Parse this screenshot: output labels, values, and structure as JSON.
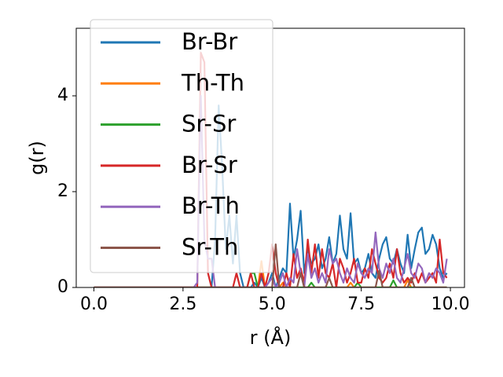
{
  "chart_data": {
    "type": "line",
    "xlabel": "r (Å)",
    "ylabel": "g(r)",
    "xlim": [
      -0.495,
      10.395
    ],
    "ylim": [
      0,
      5.41
    ],
    "xticks": [
      {
        "value": 0,
        "label": "0.0"
      },
      {
        "value": 2.5,
        "label": "2.5"
      },
      {
        "value": 5,
        "label": "5.0"
      },
      {
        "value": 7.5,
        "label": "7.5"
      },
      {
        "value": 10,
        "label": "10.0"
      }
    ],
    "yticks": [
      0,
      2,
      4
    ],
    "legend": "upper left",
    "x": [
      0,
      0.1,
      0.2,
      0.3,
      0.4,
      0.5,
      0.6,
      0.7,
      0.8,
      0.9,
      1,
      1.1,
      1.2,
      1.3,
      1.4,
      1.5,
      1.6,
      1.7,
      1.8,
      1.9,
      2,
      2.1,
      2.2,
      2.3,
      2.4,
      2.5,
      2.6,
      2.7,
      2.8,
      2.9,
      3,
      3.1,
      3.2,
      3.3,
      3.4,
      3.5,
      3.6,
      3.7,
      3.8,
      3.9,
      4,
      4.1,
      4.2,
      4.3,
      4.4,
      4.5,
      4.6,
      4.7,
      4.8,
      4.9,
      5,
      5.1,
      5.2,
      5.3,
      5.4,
      5.5,
      5.6,
      5.7,
      5.8,
      5.9,
      6,
      6.1,
      6.2,
      6.3,
      6.4,
      6.5,
      6.6,
      6.7,
      6.8,
      6.9,
      7,
      7.1,
      7.2,
      7.3,
      7.4,
      7.5,
      7.6,
      7.7,
      7.8,
      7.9,
      8,
      8.1,
      8.2,
      8.3,
      8.4,
      8.5,
      8.6,
      8.7,
      8.8,
      8.9,
      9,
      9.1,
      9.2,
      9.3,
      9.4,
      9.5,
      9.6,
      9.7,
      9.8,
      9.9
    ],
    "series": [
      {
        "name": "Br-Br",
        "color": "#1f77b4",
        "values": [
          0,
          0,
          0,
          0,
          0,
          0,
          0,
          0,
          0,
          0,
          0,
          0,
          0,
          0,
          0,
          0,
          0,
          0,
          0,
          0,
          0,
          0,
          0,
          0,
          0,
          0,
          0,
          0,
          0,
          0,
          0,
          0,
          0,
          0,
          1.0,
          3.8,
          2.5,
          0.8,
          1.5,
          0.5,
          1.5,
          0.3,
          0,
          0,
          0,
          0.1,
          0,
          0.2,
          0,
          0.1,
          0.3,
          0,
          0.2,
          0.4,
          0.3,
          1.75,
          0.6,
          1.0,
          1.6,
          0.3,
          0.8,
          0.5,
          0.6,
          0.9,
          0.4,
          0.6,
          1.05,
          0.5,
          0.7,
          1.5,
          0.8,
          0.6,
          1.55,
          0.5,
          0.6,
          0.3,
          0.4,
          0.7,
          0.3,
          0.2,
          0.6,
          0.9,
          1.05,
          0.6,
          0.5,
          0.8,
          0.5,
          0.3,
          1.1,
          0.4,
          0.8,
          1.15,
          1.25,
          0.7,
          0.8,
          1.1,
          0.9,
          0.4,
          0.2,
          0.3
        ]
      },
      {
        "name": "Th-Th",
        "color": "#ff7f0e",
        "values": [
          0,
          0,
          0,
          0,
          0,
          0,
          0,
          0,
          0,
          0,
          0,
          0,
          0,
          0,
          0,
          0,
          0,
          0,
          0,
          0,
          0,
          0,
          0,
          0,
          0,
          0,
          0,
          0,
          0,
          0,
          0,
          0,
          0,
          0,
          0,
          0,
          0,
          0,
          0,
          0,
          0,
          0,
          0,
          0,
          0,
          0,
          0,
          0.55,
          0,
          0,
          0,
          0,
          0,
          0.1,
          0,
          0,
          0,
          0,
          0,
          0,
          0,
          0,
          0,
          0,
          0,
          0,
          0,
          0,
          0,
          0,
          0,
          0,
          0.1,
          0,
          0,
          0,
          0,
          0,
          0,
          0,
          0,
          0,
          0,
          0,
          0,
          0,
          0,
          0,
          0.15,
          0,
          0,
          0,
          0,
          0,
          0,
          0,
          0,
          0,
          0,
          0
        ]
      },
      {
        "name": "Sr-Sr",
        "color": "#2ca02c",
        "values": [
          0,
          0,
          0,
          0,
          0,
          0,
          0,
          0,
          0,
          0,
          0,
          0,
          0,
          0,
          0,
          0,
          0,
          0,
          0,
          0,
          0,
          0,
          0,
          0,
          0,
          0,
          0,
          0,
          0,
          0,
          0,
          0,
          0,
          0,
          0,
          0,
          0,
          0,
          0,
          0,
          0,
          0,
          0,
          0,
          0.3,
          0.3,
          0,
          0,
          0,
          0,
          0,
          0,
          0,
          0,
          0,
          0,
          0,
          0,
          0,
          0,
          0,
          0.1,
          0,
          0,
          0,
          0,
          0,
          0,
          0,
          0,
          0,
          0,
          0,
          0,
          0.1,
          0,
          0,
          0,
          0,
          0,
          0,
          0,
          0,
          0,
          0.15,
          0,
          0,
          0,
          0,
          0,
          0,
          0,
          0,
          0,
          0,
          0,
          0,
          0,
          0,
          0
        ]
      },
      {
        "name": "Br-Sr",
        "color": "#d62728",
        "values": [
          0,
          0,
          0,
          0,
          0,
          0,
          0,
          0,
          0,
          0,
          0,
          0,
          0,
          0,
          0,
          0,
          0,
          0,
          0,
          0,
          0,
          0,
          0,
          0,
          0,
          0,
          0,
          0,
          0,
          0,
          4.9,
          4.7,
          0.3,
          0,
          0,
          0,
          0,
          0,
          0,
          0,
          0.3,
          0,
          0,
          0,
          0.3,
          0,
          0,
          0.3,
          0,
          0.3,
          0.9,
          0.3,
          0,
          0,
          0.3,
          0,
          0.7,
          0.2,
          0.4,
          0.1,
          1.0,
          0.3,
          0.9,
          0.2,
          0.8,
          0.3,
          0.2,
          0.5,
          0,
          0.6,
          0.4,
          0.1,
          0.3,
          0.6,
          0.1,
          0.1,
          0.4,
          0.2,
          0.8,
          0.5,
          0.2,
          0.1,
          0.2,
          0.5,
          0.2,
          0.8,
          0.3,
          0.1,
          0.2,
          0.1,
          0.3,
          0.1,
          0.3,
          0.1,
          0.2,
          0.3,
          0.1,
          1.0,
          0.3,
          0.2
        ]
      },
      {
        "name": "Br-Th",
        "color": "#9467bd",
        "values": [
          0,
          0,
          0,
          0,
          0,
          0,
          0,
          0,
          0,
          0,
          0,
          0,
          0,
          0,
          0,
          0,
          0,
          0,
          0,
          0,
          0,
          0,
          0,
          0,
          0,
          0,
          0,
          0,
          0,
          0.1,
          4.0,
          1.0,
          0.6,
          0.6,
          0,
          0,
          0,
          0,
          0,
          0,
          0,
          0,
          0,
          0,
          0,
          0,
          0,
          0,
          0,
          0.1,
          0.2,
          0,
          0.1,
          0.3,
          0,
          0.2,
          0.1,
          0.8,
          0.3,
          0,
          0.7,
          0.2,
          0.4,
          0.1,
          0.3,
          0.1,
          0.8,
          0.5,
          0.6,
          0.3,
          0.1,
          0.4,
          0.2,
          0.1,
          0.5,
          0.3,
          0.2,
          0.4,
          0.3,
          1.15,
          0.4,
          0.2,
          0.5,
          0.3,
          0.6,
          0.2,
          0.1,
          0.4,
          0.7,
          0.3,
          0.2,
          0.5,
          0.4,
          0.1,
          0.3,
          0.2,
          0.4,
          0.3,
          0.1,
          0.6
        ]
      },
      {
        "name": "Sr-Th",
        "color": "#8c564b",
        "values": [
          0,
          0,
          0,
          0,
          0,
          0,
          0,
          0,
          0,
          0,
          0,
          0,
          0,
          0,
          0,
          0,
          0,
          0,
          0,
          0,
          0,
          0,
          0,
          0,
          0,
          0,
          0,
          0,
          0,
          0,
          0,
          0,
          0,
          0,
          0,
          0,
          0,
          0,
          0,
          0,
          0,
          0,
          0,
          0,
          0,
          0,
          0,
          0,
          0,
          0,
          0,
          0.9,
          0,
          0,
          0,
          0,
          0,
          0,
          0.3,
          0,
          0,
          0,
          0,
          0,
          0,
          0,
          0.2,
          0,
          0,
          0,
          0,
          0,
          0,
          0,
          0,
          0,
          0,
          0,
          0,
          0,
          0.35,
          0,
          0,
          0,
          0,
          0,
          0,
          0,
          0,
          0.2,
          0,
          0,
          0,
          0,
          0,
          0,
          0,
          0,
          0,
          0
        ]
      }
    ]
  }
}
